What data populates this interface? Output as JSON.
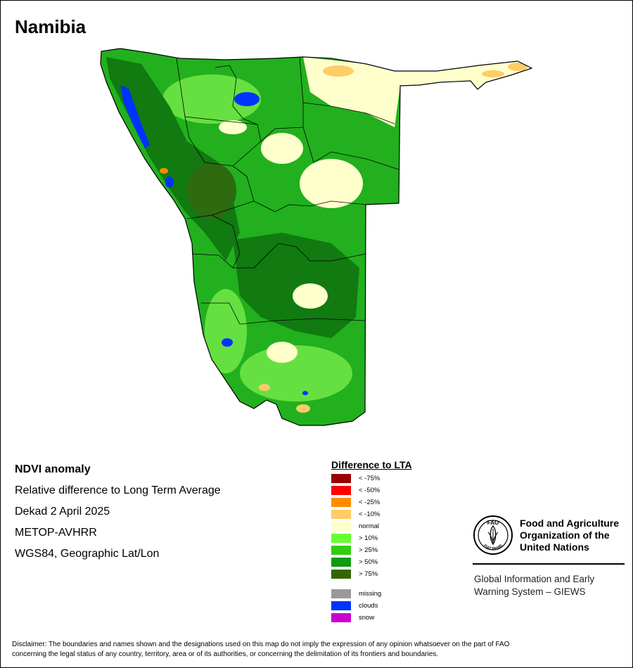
{
  "title": "Namibia",
  "info": {
    "line1": "NDVI anomaly",
    "line2": "Relative difference to Long Term Average",
    "line3": "Dekad 2 April 2025",
    "line4": "METOP-AVHRR",
    "line5": "WGS84, Geographic Lat/Lon"
  },
  "legend": {
    "title": "Difference to LTA",
    "classes": [
      {
        "label": "< -75%",
        "color": "#990000"
      },
      {
        "label": "< -50%",
        "color": "#ff0000"
      },
      {
        "label": "< -25%",
        "color": "#ff8c00"
      },
      {
        "label": "< -10%",
        "color": "#ffcc66"
      },
      {
        "label": "normal",
        "color": "#ffffcc"
      },
      {
        "label": "> 10%",
        "color": "#66ff33"
      },
      {
        "label": "> 25%",
        "color": "#33cc11"
      },
      {
        "label": "> 50%",
        "color": "#119911"
      },
      {
        "label": "> 75%",
        "color": "#336600"
      }
    ],
    "extra": [
      {
        "label": "missing",
        "color": "#999999"
      },
      {
        "label": "clouds",
        "color": "#0033ff"
      },
      {
        "label": "snow",
        "color": "#cc00cc"
      }
    ]
  },
  "map_colors": {
    "base": "#22b01e",
    "light": "#66e040",
    "dark": "#117a11",
    "darkest": "#2e6a10",
    "normal": "#ffffcc",
    "dry": "#ffcc66",
    "clouds": "#0033ff",
    "border": "#000000"
  },
  "organization": {
    "name_line1": "Food and Agriculture",
    "name_line2": "Organization of the",
    "name_line3": "United Nations",
    "emblem_letters": "FAO",
    "emblem_motto": "FIAT PANIS",
    "system_line1": "Global Information and Early",
    "system_line2": "Warning System – GIEWS"
  },
  "disclaimer": {
    "line1": "Disclaimer: The boundaries and names shown and the designations used on this map do not imply the expression of any opinion whatsoever on the part of FAO",
    "line2": "concerning the legal status of any country, territory, area or of its authorities, or concerning the delimitation of its frontiers and boundaries."
  }
}
